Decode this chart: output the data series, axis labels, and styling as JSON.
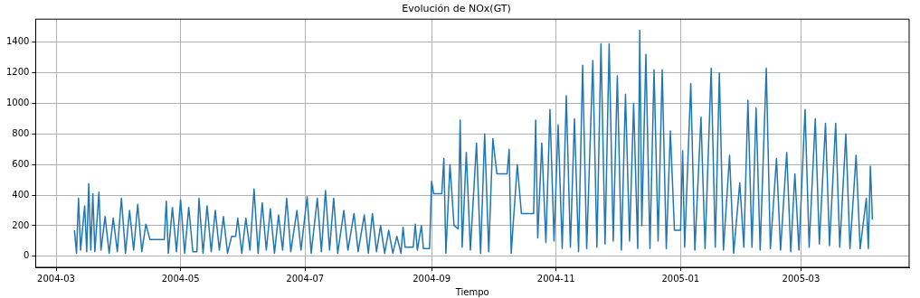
{
  "chart_data": {
    "type": "line",
    "title": "Evolución de NOx(GT)",
    "xlabel": "Tiempo",
    "grid": true,
    "legend": false,
    "marker": "none",
    "line_style": "solid",
    "xlim": [
      "2004-02-20",
      "2005-04-23"
    ],
    "xticks": [
      {
        "value": "2004-03-01",
        "label": "2004-03"
      },
      {
        "value": "2004-05-01",
        "label": "2004-05"
      },
      {
        "value": "2004-07-01",
        "label": "2004-07"
      },
      {
        "value": "2004-09-01",
        "label": "2004-09"
      },
      {
        "value": "2004-11-01",
        "label": "2004-11"
      },
      {
        "value": "2005-01-01",
        "label": "2005-01"
      },
      {
        "value": "2005-03-01",
        "label": "2005-03"
      }
    ],
    "ylim": [
      -72,
      1551
    ],
    "yticks": [
      0,
      200,
      400,
      600,
      800,
      1000,
      1200,
      1400
    ],
    "series": [
      {
        "color": "#1f77b4",
        "x": [
          "2004-03-10",
          "2004-03-11",
          "2004-03-12",
          "2004-03-13",
          "2004-03-15",
          "2004-03-16",
          "2004-03-17",
          "2004-03-18",
          "2004-03-19",
          "2004-03-20",
          "2004-03-22",
          "2004-03-23",
          "2004-03-25",
          "2004-03-27",
          "2004-03-29",
          "2004-03-31",
          "2004-04-02",
          "2004-04-04",
          "2004-04-06",
          "2004-04-08",
          "2004-04-10",
          "2004-04-12",
          "2004-04-14",
          "2004-04-16",
          "2004-04-23",
          "2004-04-24",
          "2004-04-25",
          "2004-04-27",
          "2004-04-29",
          "2004-05-01",
          "2004-05-03",
          "2004-05-05",
          "2004-05-07",
          "2004-05-09",
          "2004-05-10",
          "2004-05-12",
          "2004-05-14",
          "2004-05-16",
          "2004-05-18",
          "2004-05-20",
          "2004-05-22",
          "2004-05-24",
          "2004-05-26",
          "2004-05-28",
          "2004-05-29",
          "2004-05-31",
          "2004-06-02",
          "2004-06-04",
          "2004-06-06",
          "2004-06-08",
          "2004-06-10",
          "2004-06-12",
          "2004-06-14",
          "2004-06-16",
          "2004-06-18",
          "2004-06-20",
          "2004-06-22",
          "2004-06-24",
          "2004-06-27",
          "2004-06-29",
          "2004-07-02",
          "2004-07-04",
          "2004-07-07",
          "2004-07-09",
          "2004-07-11",
          "2004-07-13",
          "2004-07-15",
          "2004-07-17",
          "2004-07-20",
          "2004-07-22",
          "2004-07-25",
          "2004-07-27",
          "2004-07-30",
          "2004-08-01",
          "2004-08-03",
          "2004-08-05",
          "2004-08-07",
          "2004-08-09",
          "2004-08-11",
          "2004-08-13",
          "2004-08-15",
          "2004-08-17",
          "2004-08-18",
          "2004-08-19",
          "2004-08-23",
          "2004-08-24",
          "2004-08-25",
          "2004-08-27",
          "2004-08-28",
          "2004-08-31",
          "2004-09-01",
          "2004-09-02",
          "2004-09-06",
          "2004-09-07",
          "2004-09-08",
          "2004-09-10",
          "2004-09-12",
          "2004-09-14",
          "2004-09-15",
          "2004-09-16",
          "2004-09-18",
          "2004-09-20",
          "2004-09-23",
          "2004-09-25",
          "2004-09-27",
          "2004-09-29",
          "2004-10-01",
          "2004-10-03",
          "2004-10-08",
          "2004-10-09",
          "2004-10-10",
          "2004-10-13",
          "2004-10-15",
          "2004-10-21",
          "2004-10-22",
          "2004-10-23",
          "2004-10-25",
          "2004-10-27",
          "2004-10-29",
          "2004-10-31",
          "2004-11-02",
          "2004-11-04",
          "2004-11-06",
          "2004-11-08",
          "2004-11-10",
          "2004-11-12",
          "2004-11-14",
          "2004-11-16",
          "2004-11-19",
          "2004-11-21",
          "2004-11-23",
          "2004-11-25",
          "2004-11-27",
          "2004-11-29",
          "2004-12-01",
          "2004-12-03",
          "2004-12-05",
          "2004-12-07",
          "2004-12-09",
          "2004-12-11",
          "2004-12-12",
          "2004-12-13",
          "2004-12-15",
          "2004-12-17",
          "2004-12-19",
          "2004-12-21",
          "2004-12-23",
          "2004-12-25",
          "2004-12-27",
          "2004-12-29",
          "2005-01-01",
          "2005-01-02",
          "2005-01-03",
          "2005-01-06",
          "2005-01-08",
          "2005-01-11",
          "2005-01-13",
          "2005-01-16",
          "2005-01-18",
          "2005-01-20",
          "2005-01-22",
          "2005-01-25",
          "2005-01-27",
          "2005-01-30",
          "2005-02-01",
          "2005-02-03",
          "2005-02-05",
          "2005-02-07",
          "2005-02-09",
          "2005-02-12",
          "2005-02-14",
          "2005-02-17",
          "2005-02-19",
          "2005-02-22",
          "2005-02-24",
          "2005-02-26",
          "2005-02-28",
          "2005-03-03",
          "2005-03-05",
          "2005-03-08",
          "2005-03-10",
          "2005-03-13",
          "2005-03-15",
          "2005-03-18",
          "2005-03-20",
          "2005-03-23",
          "2005-03-25",
          "2005-03-28",
          "2005-03-30",
          "2005-04-02",
          "2005-04-03",
          "2005-04-04",
          "2005-04-05"
        ],
        "values": [
          170,
          20,
          380,
          40,
          330,
          30,
          475,
          40,
          410,
          30,
          420,
          40,
          260,
          20,
          250,
          30,
          380,
          20,
          300,
          40,
          340,
          30,
          210,
          110,
          110,
          360,
          20,
          320,
          30,
          370,
          20,
          320,
          30,
          30,
          380,
          20,
          330,
          30,
          300,
          40,
          260,
          20,
          130,
          130,
          250,
          20,
          250,
          40,
          440,
          20,
          350,
          40,
          310,
          20,
          270,
          40,
          380,
          30,
          300,
          40,
          390,
          20,
          380,
          30,
          430,
          40,
          380,
          20,
          300,
          40,
          280,
          30,
          270,
          20,
          280,
          30,
          200,
          20,
          170,
          20,
          130,
          20,
          190,
          60,
          60,
          210,
          40,
          200,
          50,
          50,
          490,
          410,
          410,
          640,
          20,
          600,
          200,
          180,
          890,
          60,
          680,
          40,
          740,
          20,
          800,
          30,
          770,
          540,
          540,
          700,
          20,
          600,
          280,
          280,
          890,
          120,
          740,
          90,
          960,
          100,
          860,
          50,
          1050,
          60,
          900,
          30,
          1250,
          50,
          1280,
          60,
          1390,
          80,
          1390,
          100,
          1180,
          40,
          1060,
          100,
          1000,
          50,
          1479,
          200,
          1320,
          50,
          1220,
          100,
          1220,
          50,
          820,
          170,
          170,
          690,
          60,
          1130,
          40,
          910,
          50,
          1230,
          60,
          1200,
          40,
          660,
          20,
          480,
          60,
          1020,
          60,
          970,
          40,
          1230,
          50,
          640,
          40,
          680,
          30,
          540,
          40,
          960,
          60,
          900,
          80,
          870,
          70,
          870,
          60,
          800,
          50,
          660,
          50,
          380,
          50,
          590,
          240
        ]
      }
    ]
  }
}
